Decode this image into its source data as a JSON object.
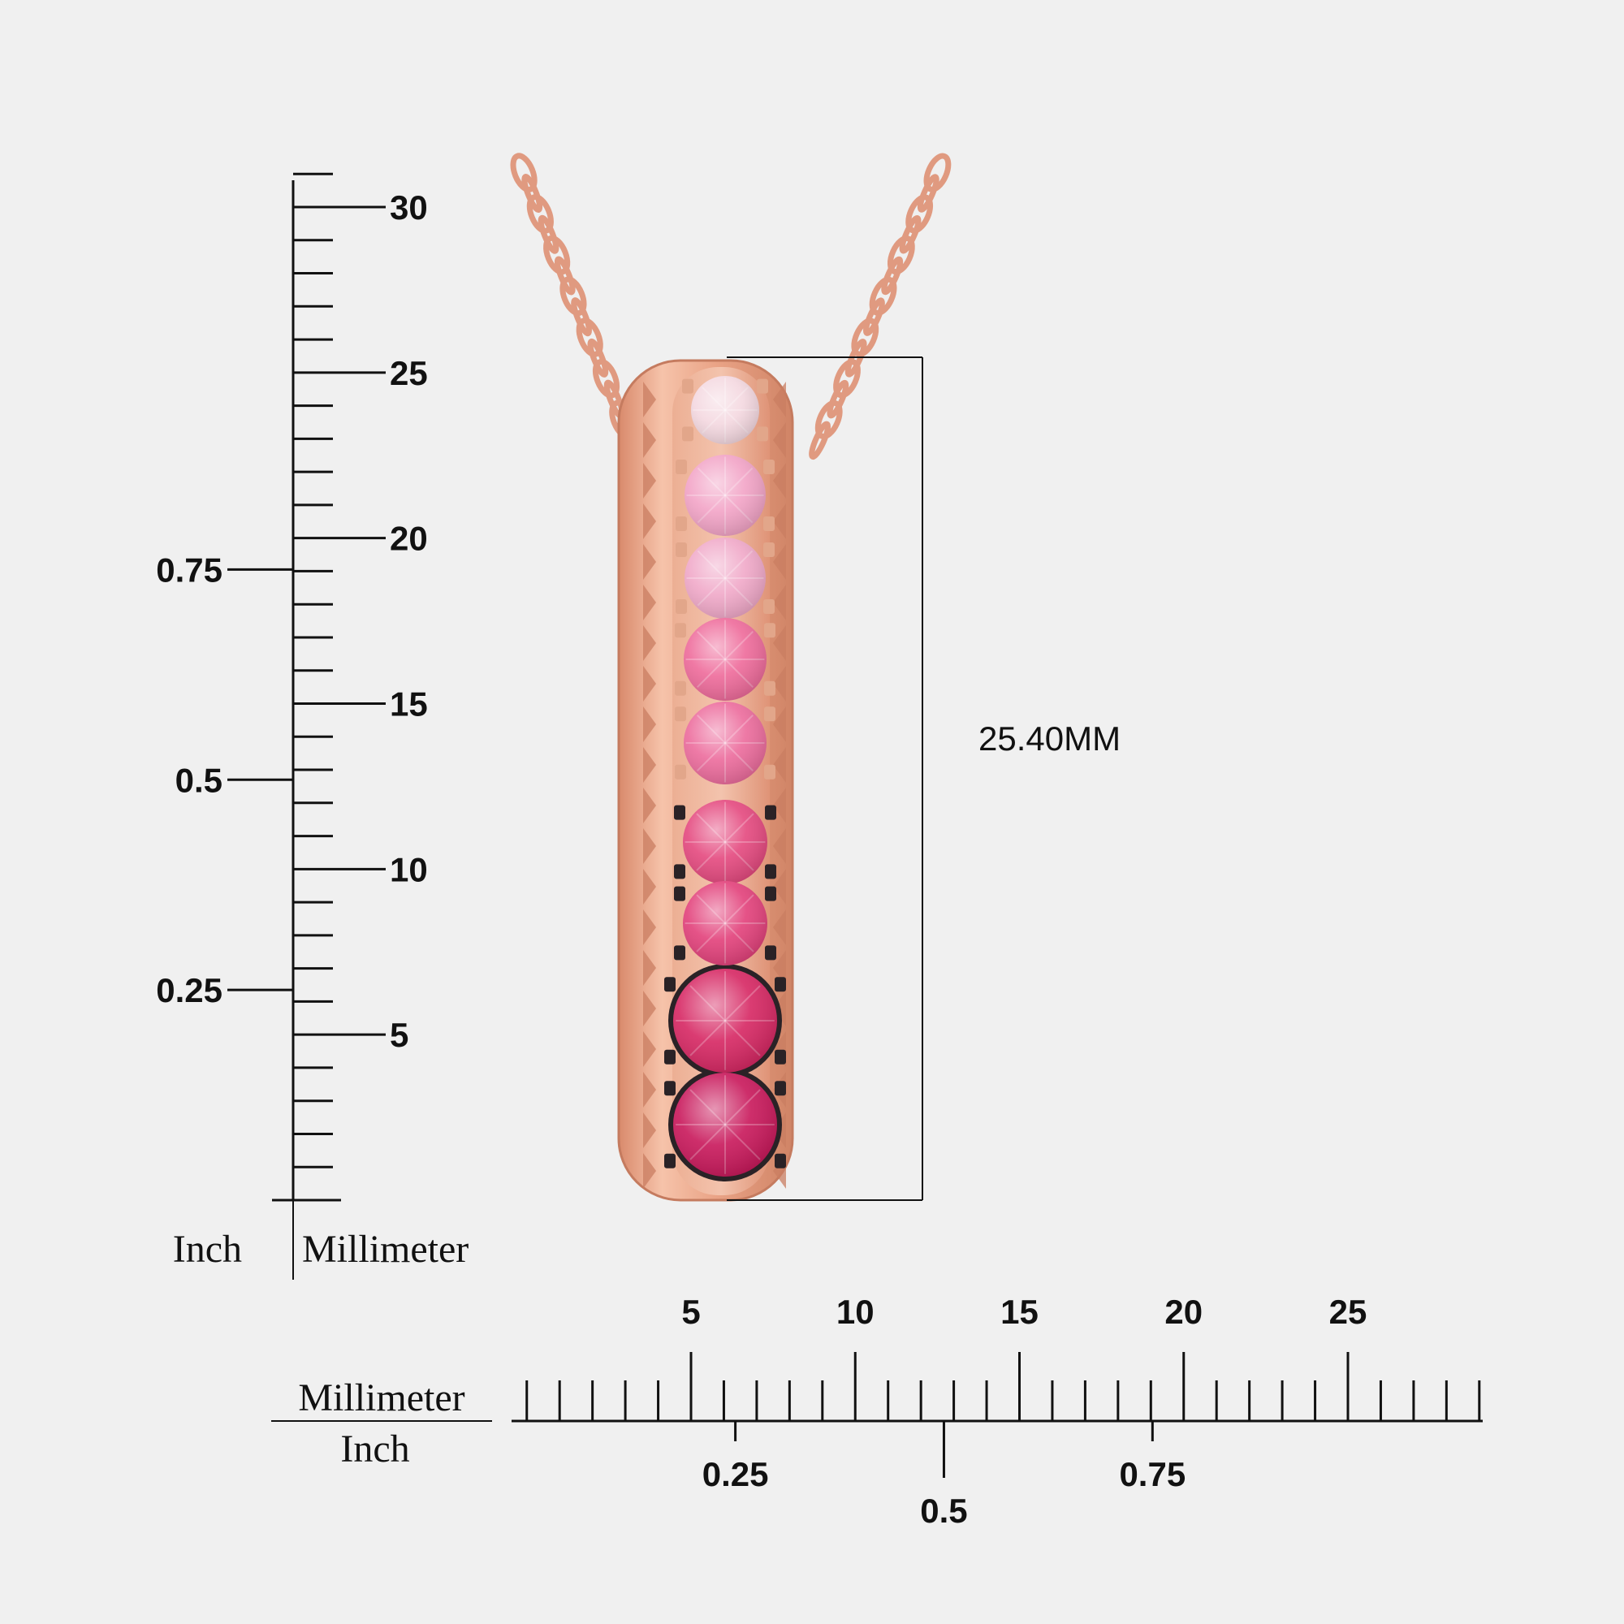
{
  "product": {
    "dimension_label": "25.40MM",
    "stone_colors": [
      "#f4d8e0",
      "#f2a3c6",
      "#f0a8c8",
      "#ee6a9a",
      "#ec6b9c",
      "#e4487e",
      "#e2407a",
      "#d62662",
      "#c8175a"
    ],
    "metal_color": "#e8a083",
    "prong_dark_color": "#2a2226"
  },
  "vertical_ruler": {
    "mm_labels": [
      "30",
      "25",
      "20",
      "15",
      "10",
      "5"
    ],
    "inch_labels": [
      "0.75",
      "0.5",
      "0.25"
    ],
    "caption_left": "Inch",
    "caption_right": "Millimeter"
  },
  "horizontal_ruler": {
    "mm_labels": [
      "5",
      "10",
      "15",
      "20",
      "25"
    ],
    "inch_labels": [
      "0.25",
      "0.5",
      "0.75"
    ],
    "caption_top": "Millimeter",
    "caption_bottom": "Inch"
  }
}
